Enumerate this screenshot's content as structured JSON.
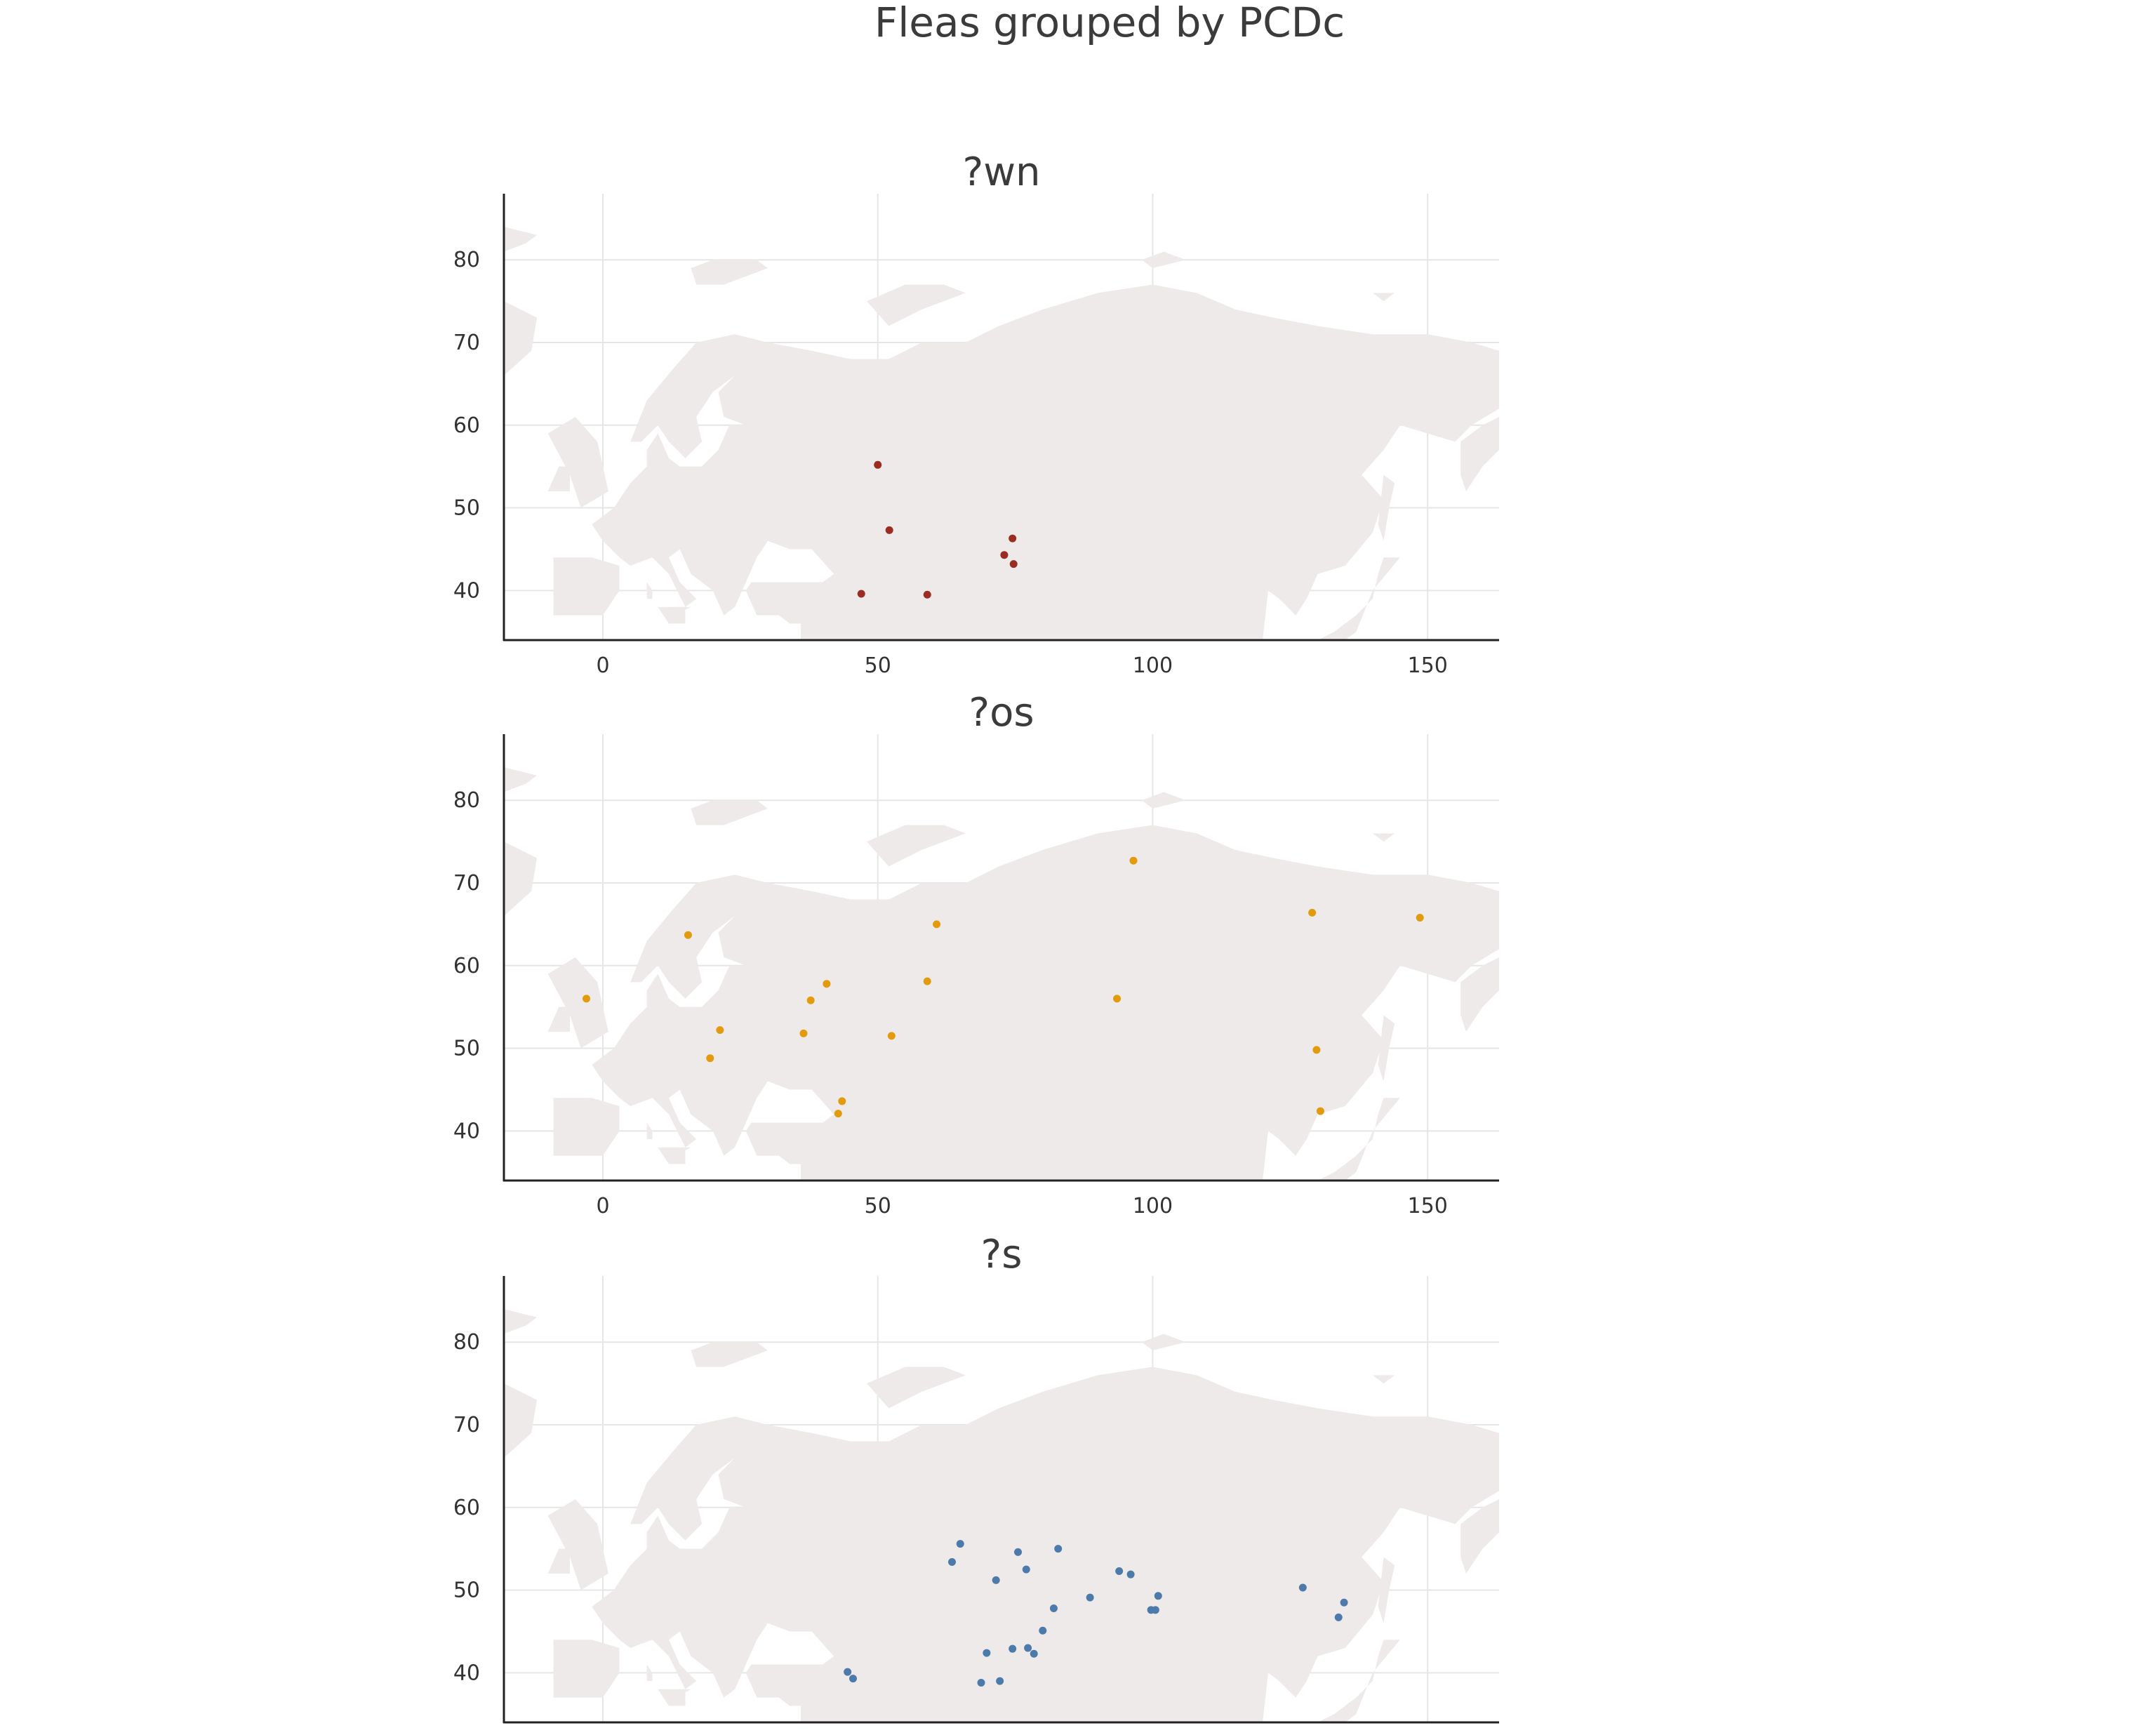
{
  "chart_data": {
    "type": "scatter",
    "title": "Fleas grouped by PCDc",
    "panels": [
      {
        "title": "?wn",
        "color": "#9b2c22",
        "xlim": [
          -18,
          163
        ],
        "ylim": [
          34,
          88
        ],
        "xticks": [
          0,
          50,
          100,
          150
        ],
        "yticks": [
          40,
          50,
          60,
          70,
          80
        ],
        "points": [
          [
            50,
            55.2
          ],
          [
            52.1,
            47.3
          ],
          [
            47,
            39.6
          ],
          [
            59,
            39.5
          ],
          [
            74.5,
            46.3
          ],
          [
            73,
            44.3
          ],
          [
            74.7,
            43.2
          ]
        ]
      },
      {
        "title": "?os",
        "color": "#e39b0e",
        "xlim": [
          -18,
          163
        ],
        "ylim": [
          34,
          88
        ],
        "xticks": [
          0,
          50,
          100,
          150
        ],
        "yticks": [
          40,
          50,
          60,
          70,
          80
        ],
        "points": [
          [
            -3,
            56
          ],
          [
            15.5,
            63.7
          ],
          [
            21.3,
            52.2
          ],
          [
            19.5,
            48.8
          ],
          [
            36.5,
            51.8
          ],
          [
            37.8,
            55.8
          ],
          [
            40.7,
            57.8
          ],
          [
            42.8,
            42.1
          ],
          [
            43.5,
            43.6
          ],
          [
            52.5,
            51.5
          ],
          [
            59,
            58.1
          ],
          [
            60.7,
            65
          ],
          [
            96.5,
            72.7
          ],
          [
            93.5,
            56
          ],
          [
            129,
            66.4
          ],
          [
            129.8,
            49.8
          ],
          [
            130.5,
            42.4
          ],
          [
            148.6,
            65.8
          ]
        ]
      },
      {
        "title": "?s",
        "color": "#4c7aaa",
        "xlim": [
          -18,
          163
        ],
        "ylim": [
          34,
          88
        ],
        "xticks": [
          0,
          50,
          100,
          150
        ],
        "yticks": [
          40,
          50,
          60,
          70,
          80
        ],
        "points": [
          [
            44.5,
            40.1
          ],
          [
            45.5,
            39.3
          ],
          [
            63.5,
            53.4
          ],
          [
            65,
            55.6
          ],
          [
            68.8,
            38.8
          ],
          [
            69.8,
            42.4
          ],
          [
            71.5,
            51.2
          ],
          [
            72.2,
            39
          ],
          [
            74.5,
            42.9
          ],
          [
            75.5,
            54.6
          ],
          [
            77,
            52.5
          ],
          [
            77.3,
            43
          ],
          [
            78.4,
            42.3
          ],
          [
            80,
            45.1
          ],
          [
            82,
            47.8
          ],
          [
            82.8,
            55
          ],
          [
            88.6,
            49.1
          ],
          [
            93.9,
            52.3
          ],
          [
            96,
            51.9
          ],
          [
            99.7,
            47.6
          ],
          [
            100.5,
            47.6
          ],
          [
            101,
            49.3
          ],
          [
            127.3,
            50.3
          ],
          [
            133.8,
            46.7
          ],
          [
            134.8,
            48.5
          ]
        ]
      }
    ]
  }
}
